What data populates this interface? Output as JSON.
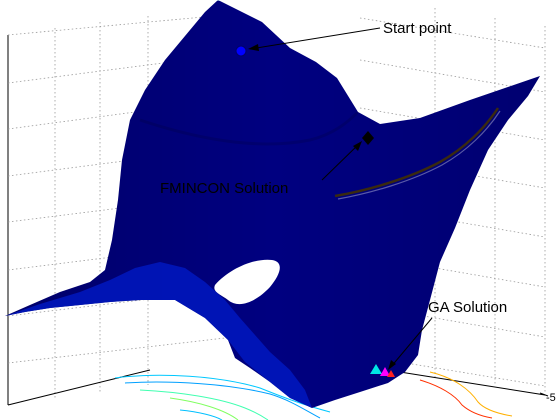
{
  "chart_data": {
    "type": "surface",
    "title": "",
    "xlabel": "",
    "ylabel": "",
    "zlabel": "",
    "grid": true,
    "colormap": "jet",
    "colors": {
      "start_marker": "#0000ff",
      "fmincon_marker": "#000000",
      "ga_marker_1": "#00e5e5",
      "ga_marker_2": "#ff00ff",
      "ga_marker_3": "#ff2020"
    },
    "tick_labels": [
      "-5"
    ],
    "annotations": [
      {
        "id": "start",
        "text": "Start point",
        "marker": "circle",
        "color": "#0000ff"
      },
      {
        "id": "fmincon",
        "text": "FMINCON Solution",
        "marker": "diamond",
        "color": "#000000"
      },
      {
        "id": "ga",
        "text": "GA Solution",
        "marker": "triangles",
        "colors": [
          "#00e5e5",
          "#ff00ff",
          "#ff2020"
        ]
      }
    ]
  }
}
